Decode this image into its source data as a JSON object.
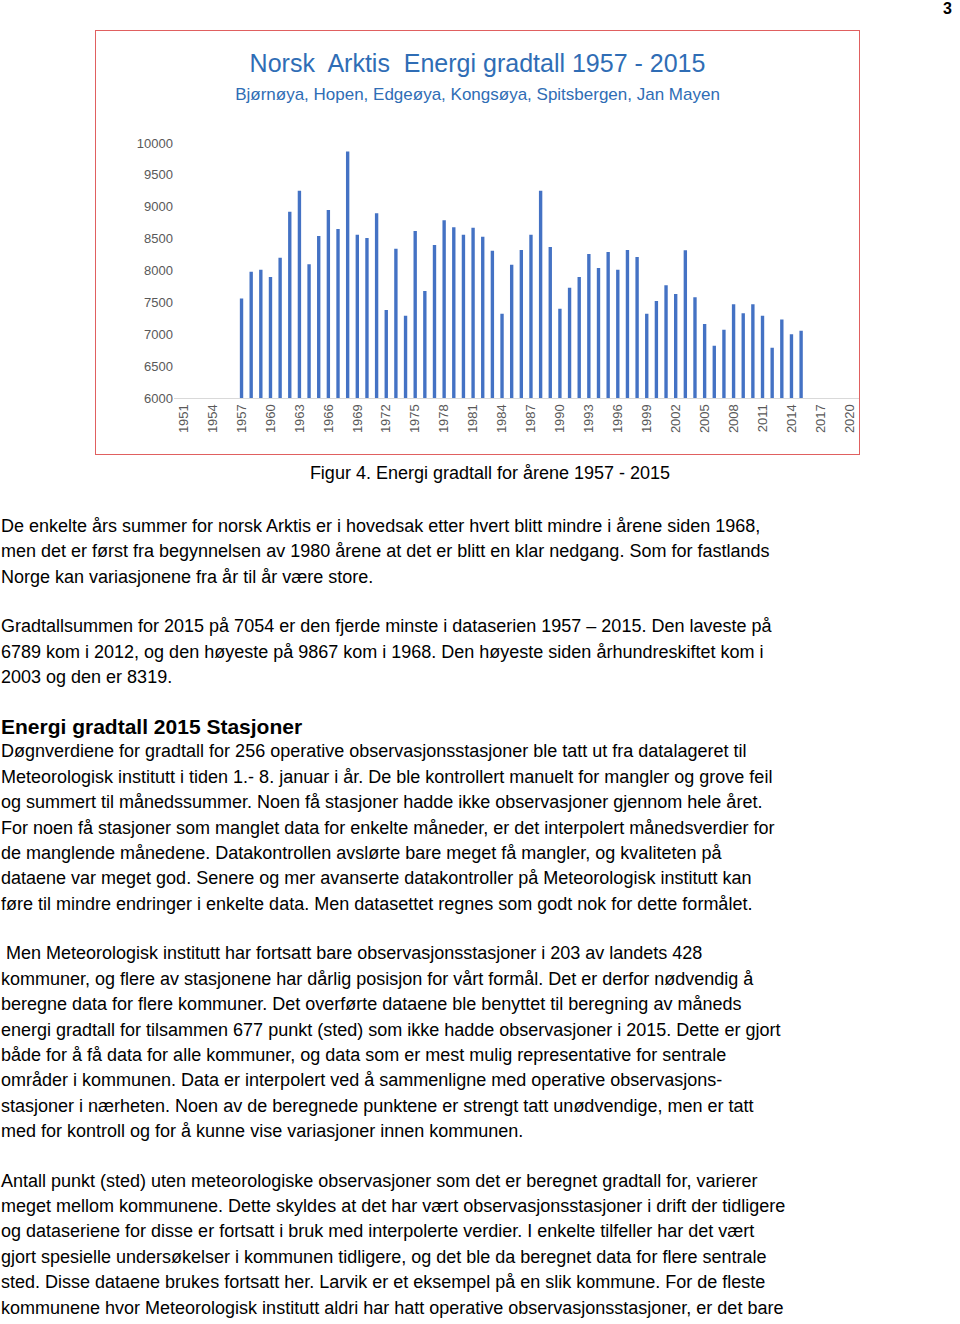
{
  "page_number": "3",
  "chart_data": {
    "type": "bar",
    "title": "Norsk  Arktis  Energi gradtall 1957 - 2015",
    "subtitle": "Bjørnøya, Hopen, Edgeøya, Kongsøya, Spitsbergen, Jan Mayen",
    "x": [
      1957,
      1958,
      1959,
      1960,
      1961,
      1962,
      1963,
      1964,
      1965,
      1966,
      1967,
      1968,
      1969,
      1970,
      1971,
      1972,
      1973,
      1974,
      1975,
      1976,
      1977,
      1978,
      1979,
      1980,
      1981,
      1982,
      1983,
      1984,
      1985,
      1986,
      1987,
      1988,
      1989,
      1990,
      1991,
      1992,
      1993,
      1994,
      1995,
      1996,
      1997,
      1998,
      1999,
      2000,
      2001,
      2002,
      2003,
      2004,
      2005,
      2006,
      2007,
      2008,
      2009,
      2010,
      2011,
      2012,
      2013,
      2014,
      2015
    ],
    "values": [
      7560,
      7980,
      8010,
      7900,
      8200,
      8920,
      9250,
      8100,
      8540,
      8950,
      8650,
      9867,
      8560,
      8510,
      8900,
      7380,
      8340,
      7290,
      8620,
      7680,
      8400,
      8790,
      8680,
      8560,
      8670,
      8530,
      8310,
      7320,
      8090,
      8320,
      8560,
      9250,
      8370,
      7400,
      7730,
      7900,
      8260,
      8040,
      8290,
      8010,
      8320,
      8210,
      7320,
      7520,
      7770,
      7630,
      8319,
      7580,
      7160,
      6820,
      7070,
      7470,
      7330,
      7470,
      7290,
      6789,
      7230,
      7000,
      7054
    ],
    "color": "#4472c4",
    "xlim": [
      1950,
      2021
    ],
    "xticks": [
      1951,
      1954,
      1957,
      1960,
      1963,
      1966,
      1969,
      1972,
      1975,
      1978,
      1981,
      1984,
      1987,
      1990,
      1993,
      1996,
      1999,
      2002,
      2005,
      2008,
      2011,
      2014,
      2017,
      2020
    ],
    "ylim": [
      6000,
      10000
    ],
    "yticks": [
      6000,
      6500,
      7000,
      7500,
      8000,
      8500,
      9000,
      9500,
      10000
    ],
    "grid": false
  },
  "caption": "Figur 4. Energi gradtall for årene 1957 - 2015",
  "body": [
    {
      "kind": "paragraph",
      "lines": [
        "De enkelte års summer for norsk Arktis er i hovedsak etter hvert blitt mindre i årene siden 1968,",
        "men det er først fra begynnelsen av 1980 årene at det er blitt en klar nedgang. Som for fastlands",
        "Norge kan variasjonene fra år til år være store."
      ]
    },
    {
      "kind": "paragraph",
      "lines": [
        "Gradtallsummen for 2015 på 7054 er den fjerde minste i dataserien 1957 – 2015. Den laveste på",
        "6789 kom i 2012, og den høyeste på 9867 kom i 1968. Den høyeste siden århundreskiftet kom i",
        "2003 og den er 8319."
      ]
    },
    {
      "kind": "heading",
      "lines": [
        "Energi gradtall 2015 Stasjoner"
      ]
    },
    {
      "kind": "paragraph",
      "lines": [
        "Døgnverdiene for gradtall for 256 operative observasjonsstasjoner ble tatt ut fra datalageret til",
        "Meteorologisk institutt i tiden 1.- 8. januar i år. De ble kontrollert manuelt for mangler og grove feil",
        "og summert til månedssummer. Noen få stasjoner hadde ikke observasjoner gjennom hele året.",
        "For noen få stasjoner som manglet data for enkelte måneder, er det interpolert månedsverdier for",
        "de manglende månedene. Datakontrollen avslørte bare meget få mangler, og kvaliteten på",
        "dataene var meget god. Senere og mer avanserte datakontroller på Meteorologisk institutt kan",
        "føre til mindre endringer i enkelte data. Men datasettet regnes som godt nok for dette formålet."
      ]
    },
    {
      "kind": "paragraph",
      "lines": [
        " Men Meteorologisk institutt har fortsatt bare observasjonsstasjoner i 203 av landets 428",
        "kommuner, og flere av stasjonene har dårlig posisjon for vårt formål. Det er derfor nødvendig å",
        "beregne data for flere kommuner. Det overførte dataene ble benyttet til beregning av måneds",
        "energi gradtall for tilsammen 677 punkt (sted) som ikke hadde observasjoner i 2015. Dette er gjort",
        "både for å få data for alle kommuner, og data som er mest mulig representative for sentrale",
        "områder i kommunen. Data er interpolert ved å sammenligne med operative observasjons-",
        "stasjoner i nærheten. Noen av de beregnede punktene er strengt tatt unødvendige, men er tatt",
        "med for kontroll og for å kunne vise variasjoner innen kommunen."
      ]
    },
    {
      "kind": "paragraph",
      "lines": [
        "Antall punkt (sted) uten meteorologiske observasjoner som det er beregnet gradtall for, varierer",
        "meget mellom kommunene. Dette skyldes at det har vært observasjonsstasjoner i drift der tidligere",
        "og dataseriene for disse er fortsatt i bruk med interpolerte verdier. I enkelte tilfeller har det vært",
        "gjort spesielle undersøkelser i kommunen tidligere, og det ble da beregnet data for flere sentrale",
        "sted. Disse dataene brukes fortsatt her. Larvik er et eksempel på en slik kommune. For de fleste",
        "kommunene hvor Meteorologisk institutt aldri har hatt operative observasjonsstasjoner, er det bare"
      ]
    }
  ]
}
